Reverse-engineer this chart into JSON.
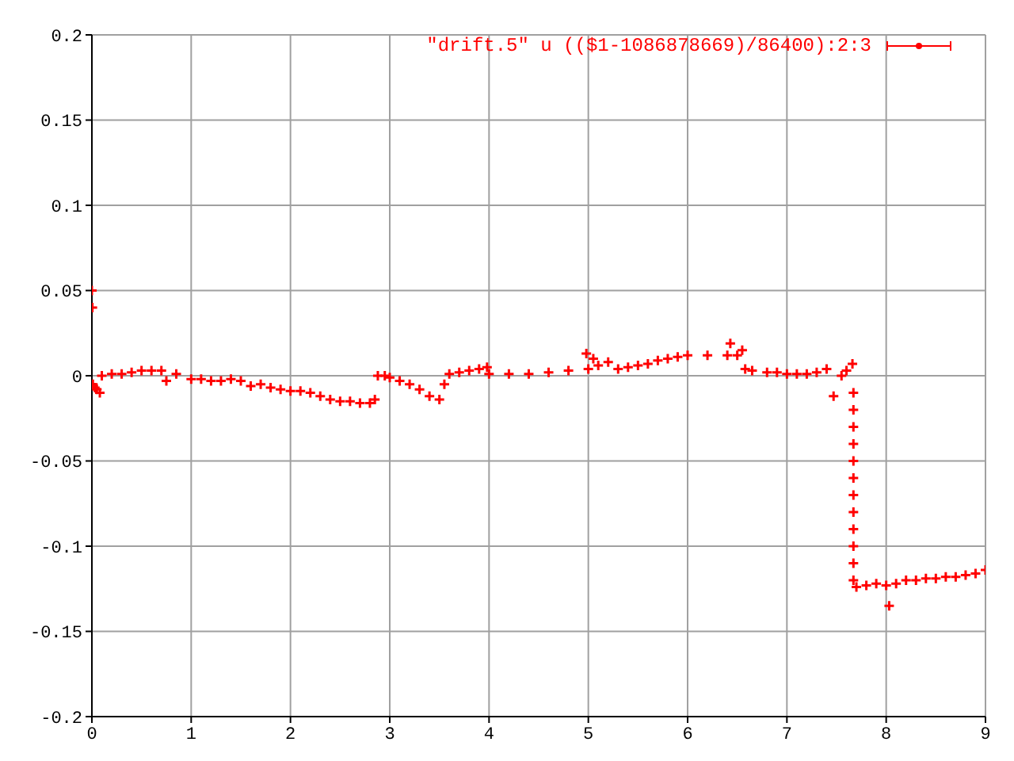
{
  "chart_data": {
    "type": "scatter",
    "xlim": [
      0,
      9
    ],
    "xticks": [
      0,
      1,
      2,
      3,
      4,
      5,
      6,
      7,
      8,
      9
    ],
    "ylim": [
      -0.2,
      0.2
    ],
    "yticks": [
      -0.2,
      -0.15,
      -0.1,
      -0.05,
      0,
      0.05,
      0.1,
      0.15,
      0.2
    ],
    "grid": true,
    "legend": "top right",
    "marker": "cross",
    "series": [
      {
        "name": "\"drift.5\" u (($1-1086878669)/86400):2:3",
        "color": "#ff0000",
        "x": [
          0,
          0.005,
          0.01,
          0.03,
          0.05,
          0.08,
          0.1,
          0.2,
          0.3,
          0.4,
          0.5,
          0.6,
          0.7,
          0.75,
          0.85,
          1.0,
          1.1,
          1.2,
          1.3,
          1.4,
          1.5,
          1.6,
          1.7,
          1.8,
          1.9,
          2.0,
          2.1,
          2.2,
          2.3,
          2.4,
          2.5,
          2.6,
          2.7,
          2.8,
          2.85,
          2.88,
          2.95,
          3.0,
          3.1,
          3.2,
          3.3,
          3.4,
          3.5,
          3.55,
          3.6,
          3.7,
          3.8,
          3.9,
          3.98,
          4.0,
          4.2,
          4.4,
          4.6,
          4.8,
          5.0,
          4.98,
          5.05,
          5.1,
          5.2,
          5.3,
          5.4,
          5.5,
          5.6,
          5.7,
          5.8,
          5.9,
          6.0,
          6.2,
          6.4,
          6.43,
          6.5,
          6.55,
          6.58,
          6.65,
          6.8,
          6.9,
          7.0,
          7.1,
          7.2,
          7.3,
          7.4,
          7.47,
          7.55,
          7.6,
          7.66,
          7.67,
          7.67,
          7.67,
          7.67,
          7.67,
          7.67,
          7.67,
          7.67,
          7.67,
          7.67,
          7.67,
          7.67,
          7.7,
          7.8,
          7.9,
          8.0,
          8.03,
          8.1,
          8.2,
          8.3,
          8.4,
          8.5,
          8.6,
          8.7,
          8.8,
          8.9,
          9.0
        ],
        "values": [
          0.05,
          0.04,
          -0.005,
          -0.007,
          -0.008,
          -0.01,
          0.0,
          0.001,
          0.001,
          0.002,
          0.003,
          0.003,
          0.003,
          -0.003,
          0.001,
          -0.002,
          -0.002,
          -0.003,
          -0.003,
          -0.002,
          -0.003,
          -0.006,
          -0.005,
          -0.007,
          -0.008,
          -0.009,
          -0.009,
          -0.01,
          -0.012,
          -0.014,
          -0.015,
          -0.015,
          -0.016,
          -0.016,
          -0.014,
          0.0,
          0.0,
          -0.001,
          -0.003,
          -0.005,
          -0.008,
          -0.012,
          -0.014,
          -0.005,
          0.001,
          0.002,
          0.003,
          0.004,
          0.005,
          0.001,
          0.001,
          0.001,
          0.002,
          0.003,
          0.004,
          0.013,
          0.01,
          0.006,
          0.008,
          0.004,
          0.005,
          0.006,
          0.007,
          0.009,
          0.01,
          0.011,
          0.012,
          0.012,
          0.012,
          0.019,
          0.012,
          0.015,
          0.004,
          0.003,
          0.002,
          0.002,
          0.001,
          0.001,
          0.001,
          0.002,
          0.004,
          -0.012,
          0.0,
          0.003,
          0.007,
          -0.01,
          -0.02,
          -0.03,
          -0.04,
          -0.05,
          -0.06,
          -0.07,
          -0.08,
          -0.09,
          -0.1,
          -0.11,
          -0.12,
          -0.124,
          -0.123,
          -0.122,
          -0.123,
          -0.135,
          -0.122,
          -0.12,
          -0.12,
          -0.119,
          -0.119,
          -0.118,
          -0.118,
          -0.117,
          -0.116,
          -0.114
        ]
      }
    ]
  }
}
